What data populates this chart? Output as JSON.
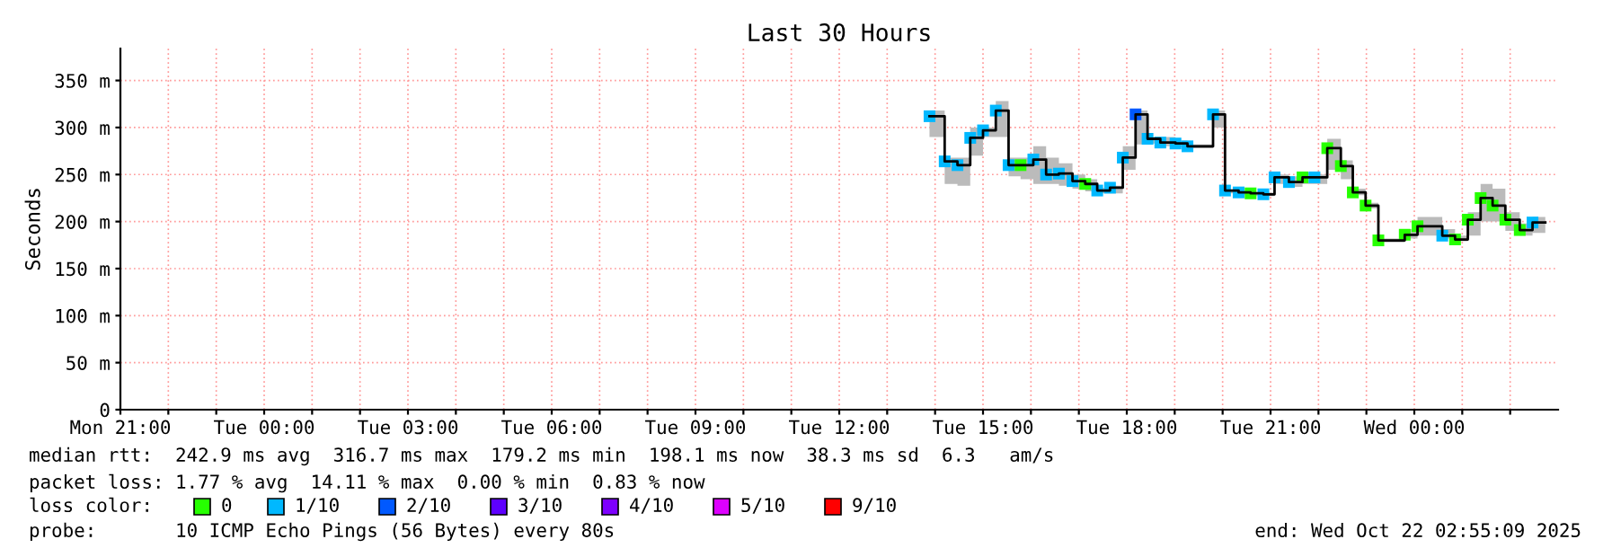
{
  "chart_data": {
    "type": "step",
    "title": "Last 30 Hours",
    "ylabel": "Seconds",
    "xlim": [
      "2025-10-20T21:00",
      "2025-10-22T03:00"
    ],
    "xticks": [
      {
        "value": "2025-10-20T21:00",
        "label": "Mon 21:00"
      },
      {
        "value": "2025-10-20T22:00",
        "label": null
      },
      {
        "value": "2025-10-20T23:00",
        "label": null
      },
      {
        "value": "2025-10-21T00:00",
        "label": "Tue 00:00"
      },
      {
        "value": "2025-10-21T01:00",
        "label": null
      },
      {
        "value": "2025-10-21T02:00",
        "label": null
      },
      {
        "value": "2025-10-21T03:00",
        "label": "Tue 03:00"
      },
      {
        "value": "2025-10-21T04:00",
        "label": null
      },
      {
        "value": "2025-10-21T05:00",
        "label": null
      },
      {
        "value": "2025-10-21T06:00",
        "label": "Tue 06:00"
      },
      {
        "value": "2025-10-21T07:00",
        "label": null
      },
      {
        "value": "2025-10-21T08:00",
        "label": null
      },
      {
        "value": "2025-10-21T09:00",
        "label": "Tue 09:00"
      },
      {
        "value": "2025-10-21T10:00",
        "label": null
      },
      {
        "value": "2025-10-21T11:00",
        "label": null
      },
      {
        "value": "2025-10-21T12:00",
        "label": "Tue 12:00"
      },
      {
        "value": "2025-10-21T13:00",
        "label": null
      },
      {
        "value": "2025-10-21T14:00",
        "label": null
      },
      {
        "value": "2025-10-21T15:00",
        "label": "Tue 15:00"
      },
      {
        "value": "2025-10-21T16:00",
        "label": null
      },
      {
        "value": "2025-10-21T17:00",
        "label": null
      },
      {
        "value": "2025-10-21T18:00",
        "label": "Tue 18:00"
      },
      {
        "value": "2025-10-21T19:00",
        "label": null
      },
      {
        "value": "2025-10-21T20:00",
        "label": null
      },
      {
        "value": "2025-10-21T21:00",
        "label": "Tue 21:00"
      },
      {
        "value": "2025-10-21T22:00",
        "label": null
      },
      {
        "value": "2025-10-21T23:00",
        "label": null
      },
      {
        "value": "2025-10-22T00:00",
        "label": "Wed 00:00"
      },
      {
        "value": "2025-10-22T01:00",
        "label": null
      },
      {
        "value": "2025-10-22T02:00",
        "label": null
      }
    ],
    "ylim": [
      0,
      384
    ],
    "yticks": [
      0,
      {
        "value": 50,
        "label": "50 m"
      },
      {
        "value": 100,
        "label": "100 m"
      },
      {
        "value": 150,
        "label": "150 m"
      },
      {
        "value": 200,
        "label": "200 m"
      },
      {
        "value": 250,
        "label": "250 m"
      },
      {
        "value": 300,
        "label": "300 m"
      },
      {
        "value": 350,
        "label": "350 m"
      }
    ],
    "grid": true,
    "legend": "bottom",
    "legend_title": "loss color:",
    "x": [
      "2025-10-21T13:53",
      "2025-10-21T14:12",
      "2025-10-21T14:28",
      "2025-10-21T14:44",
      "2025-10-21T15:00",
      "2025-10-21T15:16",
      "2025-10-21T15:32",
      "2025-10-21T15:47",
      "2025-10-21T16:03",
      "2025-10-21T16:19",
      "2025-10-21T16:35",
      "2025-10-21T16:52",
      "2025-10-21T17:08",
      "2025-10-21T17:23",
      "2025-10-21T17:39",
      "2025-10-21T17:55",
      "2025-10-21T18:11",
      "2025-10-21T18:26",
      "2025-10-21T18:42",
      "2025-10-21T19:01",
      "2025-10-21T19:16",
      "2025-10-21T19:48",
      "2025-10-21T20:03",
      "2025-10-21T20:20",
      "2025-10-21T20:35",
      "2025-10-21T20:51",
      "2025-10-21T21:05",
      "2025-10-21T21:23",
      "2025-10-21T21:40",
      "2025-10-21T21:55",
      "2025-10-21T22:11",
      "2025-10-21T22:28",
      "2025-10-21T22:43",
      "2025-10-21T22:59",
      "2025-10-21T23:15",
      "2025-10-21T23:48",
      "2025-10-22T00:04",
      "2025-10-22T00:35",
      "2025-10-22T00:51",
      "2025-10-22T01:07",
      "2025-10-22T01:23",
      "2025-10-22T01:38",
      "2025-10-22T01:54",
      "2025-10-22T02:12",
      "2025-10-22T02:28",
      "2025-10-22T02:44"
    ],
    "series": [
      {
        "color": "#000000",
        "values": [
          312,
          264,
          260,
          289,
          297,
          318,
          260,
          260,
          266,
          250,
          251,
          243,
          240,
          233,
          236,
          268,
          314,
          288,
          284,
          283,
          280,
          314,
          233,
          231,
          230,
          229,
          247,
          242,
          247,
          247,
          278,
          259,
          231,
          217,
          180,
          186,
          195,
          185,
          181,
          202,
          225,
          217,
          202,
          191,
          199,
          199
        ],
        "lower": [
          290,
          240,
          238,
          270,
          290,
          290,
          248,
          245,
          240,
          240,
          238,
          235,
          232,
          230,
          230,
          255,
          282,
          283,
          280,
          279,
          278,
          300,
          230,
          228,
          227,
          227,
          240,
          237,
          240,
          240,
          255,
          245,
          228,
          214,
          178,
          182,
          185,
          182,
          179,
          185,
          200,
          200,
          190,
          185,
          188,
          188
        ],
        "upper": [
          318,
          268,
          268,
          300,
          300,
          328,
          268,
          268,
          280,
          268,
          262,
          250,
          245,
          236,
          238,
          280,
          318,
          290,
          290,
          286,
          282,
          318,
          234,
          233,
          231,
          231,
          250,
          248,
          252,
          250,
          288,
          265,
          235,
          220,
          182,
          192,
          205,
          192,
          185,
          210,
          240,
          235,
          210,
          198,
          205,
          205
        ]
      },
      {
        "type": "scatter",
        "marker": "square",
        "name": "0",
        "color": "#26ff00",
        "x": [
          "2025-10-21T15:47",
          "2025-10-21T17:08",
          "2025-10-21T20:35",
          "2025-10-21T21:40",
          "2025-10-21T22:11",
          "2025-10-21T22:28",
          "2025-10-21T22:43",
          "2025-10-21T22:59",
          "2025-10-21T23:15",
          "2025-10-21T23:48",
          "2025-10-22T00:04",
          "2025-10-22T00:51",
          "2025-10-22T01:07",
          "2025-10-22T01:23",
          "2025-10-22T01:38",
          "2025-10-22T01:54",
          "2025-10-22T02:12"
        ],
        "values": [
          260,
          240,
          230,
          247,
          278,
          259,
          231,
          217,
          180,
          186,
          195,
          181,
          202,
          225,
          217,
          202,
          191
        ]
      },
      {
        "type": "scatter",
        "marker": "square",
        "name": "1/10",
        "color": "#00b8ff",
        "x": [
          "2025-10-21T13:53",
          "2025-10-21T14:12",
          "2025-10-21T14:28",
          "2025-10-21T14:44",
          "2025-10-21T15:00",
          "2025-10-21T15:16",
          "2025-10-21T15:32",
          "2025-10-21T16:03",
          "2025-10-21T16:19",
          "2025-10-21T16:35",
          "2025-10-21T16:52",
          "2025-10-21T17:23",
          "2025-10-21T17:39",
          "2025-10-21T17:55",
          "2025-10-21T18:26",
          "2025-10-21T18:42",
          "2025-10-21T19:01",
          "2025-10-21T19:16",
          "2025-10-21T19:48",
          "2025-10-21T20:03",
          "2025-10-21T20:20",
          "2025-10-21T20:51",
          "2025-10-21T21:05",
          "2025-10-21T21:23",
          "2025-10-21T21:55",
          "2025-10-22T00:35",
          "2025-10-22T02:28"
        ],
        "values": [
          312,
          264,
          260,
          289,
          297,
          318,
          260,
          266,
          250,
          251,
          243,
          233,
          236,
          268,
          288,
          284,
          283,
          280,
          314,
          233,
          231,
          229,
          247,
          242,
          247,
          185,
          199
        ]
      },
      {
        "type": "scatter",
        "marker": "square",
        "name": "2/10",
        "color": "#0059ff",
        "x": [
          "2025-10-21T18:11"
        ],
        "values": [
          314
        ]
      },
      {
        "type": "scatter",
        "name": "3/10",
        "color": "#5e00ff",
        "values": [
          null,
          null,
          null,
          null,
          null,
          null,
          null,
          null,
          null,
          null,
          null,
          null,
          null,
          null,
          null,
          null,
          null,
          null,
          null,
          null,
          null,
          null,
          null,
          null,
          null,
          null,
          null,
          null,
          null,
          null,
          null,
          null,
          null,
          null,
          null,
          null,
          null,
          null,
          null,
          null,
          null,
          null,
          null,
          null,
          null,
          null
        ]
      },
      {
        "type": "scatter",
        "name": "4/10",
        "color": "#7e00ff",
        "values": [
          null,
          null,
          null,
          null,
          null,
          null,
          null,
          null,
          null,
          null,
          null,
          null,
          null,
          null,
          null,
          null,
          null,
          null,
          null,
          null,
          null,
          null,
          null,
          null,
          null,
          null,
          null,
          null,
          null,
          null,
          null,
          null,
          null,
          null,
          null,
          null,
          null,
          null,
          null,
          null,
          null,
          null,
          null,
          null,
          null,
          null
        ]
      },
      {
        "type": "scatter",
        "name": "5/10",
        "color": "#dd00ff",
        "values": [
          null,
          null,
          null,
          null,
          null,
          null,
          null,
          null,
          null,
          null,
          null,
          null,
          null,
          null,
          null,
          null,
          null,
          null,
          null,
          null,
          null,
          null,
          null,
          null,
          null,
          null,
          null,
          null,
          null,
          null,
          null,
          null,
          null,
          null,
          null,
          null,
          null,
          null,
          null,
          null,
          null,
          null,
          null,
          null,
          null,
          null
        ]
      },
      {
        "type": "scatter",
        "name": "9/10",
        "color": "#ff0000",
        "values": [
          null,
          null,
          null,
          null,
          null,
          null,
          null,
          null,
          null,
          null,
          null,
          null,
          null,
          null,
          null,
          null,
          null,
          null,
          null,
          null,
          null,
          null,
          null,
          null,
          null,
          null,
          null,
          null,
          null,
          null,
          null,
          null,
          null,
          null,
          null,
          null,
          null,
          null,
          null,
          null,
          null,
          null,
          null,
          null,
          null,
          null
        ]
      }
    ],
    "annotations": [
      "median rtt:  242.9 ms avg  316.7 ms max  179.2 ms min  198.1 ms now  38.3 ms sd  6.3   am/s",
      "packet loss: 1.77 % avg  14.11 % max  0.00 % min  0.83 % now",
      "probe:       10 ICMP Echo Pings (56 Bytes) every 80s",
      "end: Wed Oct 22 02:55:09 2025"
    ]
  }
}
